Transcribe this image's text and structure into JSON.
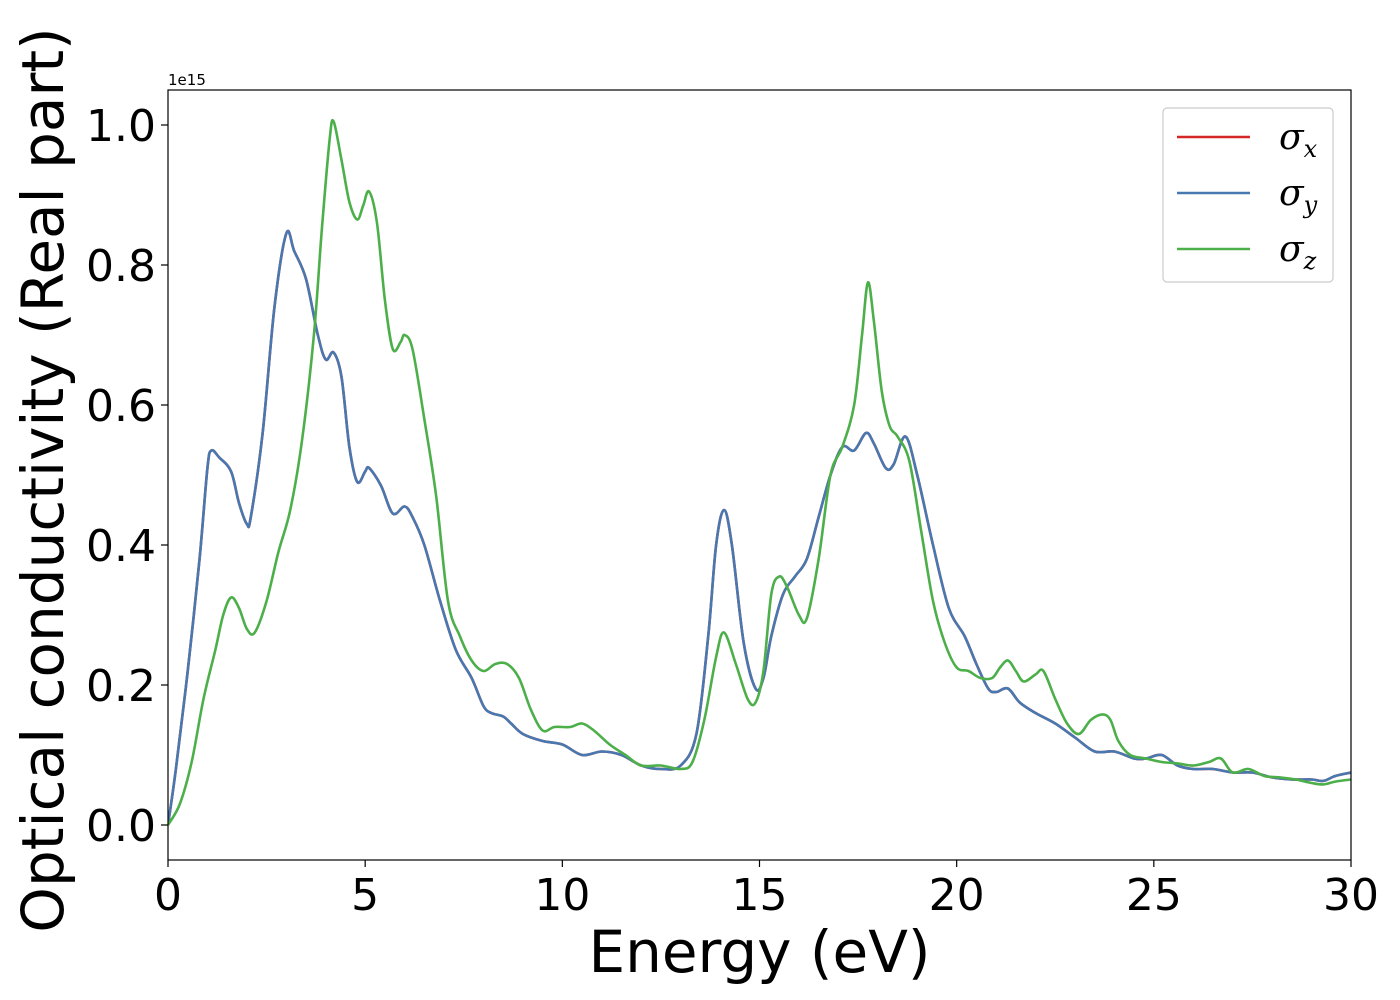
{
  "chart_data": {
    "type": "line",
    "xlabel": "Energy (eV)",
    "ylabel": "Optical conductivity (Real part)",
    "y_offset_label": "1e15",
    "xlim": [
      0,
      30
    ],
    "ylim": [
      -0.05,
      1.05
    ],
    "xticks": [
      0,
      5,
      10,
      15,
      20,
      25,
      30
    ],
    "xtick_labels": [
      "0",
      "5",
      "10",
      "15",
      "20",
      "25",
      "30"
    ],
    "yticks": [
      0.0,
      0.2,
      0.4,
      0.6,
      0.8,
      1.0
    ],
    "ytick_labels": [
      "0.0",
      "0.2",
      "0.4",
      "0.6",
      "0.8",
      "1.0"
    ],
    "grid": false,
    "legend_position": "top-right",
    "series": [
      {
        "name": "σx",
        "legend_base": "σ",
        "legend_sub": "x",
        "color": "#d62728",
        "x": [
          0,
          0.2,
          0.5,
          0.8,
          1.0,
          1.1,
          1.3,
          1.6,
          1.8,
          2.0,
          2.1,
          2.4,
          2.7,
          3.0,
          3.2,
          3.5,
          3.8,
          4.0,
          4.2,
          4.4,
          4.6,
          4.8,
          5.0,
          5.1,
          5.4,
          5.7,
          6.0,
          6.2,
          6.5,
          6.9,
          7.3,
          7.7,
          8.0,
          8.2,
          8.5,
          8.7,
          9.0,
          9.5,
          10.0,
          10.5,
          11.0,
          11.5,
          12.0,
          12.5,
          13.0,
          13.4,
          13.7,
          13.9,
          14.1,
          14.3,
          14.6,
          14.9,
          15.1,
          15.3,
          15.6,
          15.9,
          16.2,
          16.5,
          16.8,
          17.1,
          17.4,
          17.7,
          17.9,
          18.2,
          18.4,
          18.7,
          19.0,
          19.4,
          19.8,
          20.2,
          20.5,
          20.8,
          21.0,
          21.3,
          21.6,
          22.0,
          22.5,
          23.0,
          23.5,
          24.0,
          24.5,
          24.8,
          25.2,
          25.6,
          26.0,
          26.5,
          27.0,
          27.5,
          28.0,
          28.5,
          29.0,
          29.3,
          29.6,
          30.0
        ],
        "y": [
          0.0,
          0.08,
          0.22,
          0.38,
          0.51,
          0.535,
          0.525,
          0.505,
          0.46,
          0.43,
          0.44,
          0.56,
          0.74,
          0.845,
          0.82,
          0.78,
          0.7,
          0.665,
          0.675,
          0.64,
          0.54,
          0.49,
          0.505,
          0.51,
          0.485,
          0.445,
          0.455,
          0.44,
          0.4,
          0.32,
          0.25,
          0.21,
          0.17,
          0.16,
          0.155,
          0.145,
          0.13,
          0.12,
          0.115,
          0.1,
          0.105,
          0.1,
          0.085,
          0.08,
          0.085,
          0.13,
          0.27,
          0.4,
          0.45,
          0.4,
          0.26,
          0.195,
          0.21,
          0.27,
          0.33,
          0.355,
          0.38,
          0.44,
          0.5,
          0.54,
          0.535,
          0.56,
          0.545,
          0.51,
          0.515,
          0.555,
          0.5,
          0.4,
          0.31,
          0.27,
          0.23,
          0.195,
          0.19,
          0.195,
          0.175,
          0.16,
          0.145,
          0.125,
          0.105,
          0.105,
          0.095,
          0.095,
          0.1,
          0.085,
          0.08,
          0.08,
          0.075,
          0.075,
          0.068,
          0.065,
          0.065,
          0.063,
          0.07,
          0.075
        ]
      },
      {
        "name": "σy",
        "legend_base": "σ",
        "legend_sub": "y",
        "color": "#4878b0",
        "x": [
          0,
          0.2,
          0.5,
          0.8,
          1.0,
          1.1,
          1.3,
          1.6,
          1.8,
          2.0,
          2.1,
          2.4,
          2.7,
          3.0,
          3.2,
          3.5,
          3.8,
          4.0,
          4.2,
          4.4,
          4.6,
          4.8,
          5.0,
          5.1,
          5.4,
          5.7,
          6.0,
          6.2,
          6.5,
          6.9,
          7.3,
          7.7,
          8.0,
          8.2,
          8.5,
          8.7,
          9.0,
          9.5,
          10.0,
          10.5,
          11.0,
          11.5,
          12.0,
          12.5,
          13.0,
          13.4,
          13.7,
          13.9,
          14.1,
          14.3,
          14.6,
          14.9,
          15.1,
          15.3,
          15.6,
          15.9,
          16.2,
          16.5,
          16.8,
          17.1,
          17.4,
          17.7,
          17.9,
          18.2,
          18.4,
          18.7,
          19.0,
          19.4,
          19.8,
          20.2,
          20.5,
          20.8,
          21.0,
          21.3,
          21.6,
          22.0,
          22.5,
          23.0,
          23.5,
          24.0,
          24.5,
          24.8,
          25.2,
          25.6,
          26.0,
          26.5,
          27.0,
          27.5,
          28.0,
          28.5,
          29.0,
          29.3,
          29.6,
          30.0
        ],
        "y": [
          0.0,
          0.08,
          0.22,
          0.38,
          0.51,
          0.535,
          0.525,
          0.505,
          0.46,
          0.43,
          0.44,
          0.56,
          0.74,
          0.845,
          0.82,
          0.78,
          0.7,
          0.665,
          0.675,
          0.64,
          0.54,
          0.49,
          0.505,
          0.51,
          0.485,
          0.445,
          0.455,
          0.44,
          0.4,
          0.32,
          0.25,
          0.21,
          0.17,
          0.16,
          0.155,
          0.145,
          0.13,
          0.12,
          0.115,
          0.1,
          0.105,
          0.1,
          0.085,
          0.08,
          0.085,
          0.13,
          0.27,
          0.4,
          0.45,
          0.4,
          0.26,
          0.195,
          0.21,
          0.27,
          0.33,
          0.355,
          0.38,
          0.44,
          0.5,
          0.54,
          0.535,
          0.56,
          0.545,
          0.51,
          0.515,
          0.555,
          0.5,
          0.4,
          0.31,
          0.27,
          0.23,
          0.195,
          0.19,
          0.195,
          0.175,
          0.16,
          0.145,
          0.125,
          0.105,
          0.105,
          0.095,
          0.095,
          0.1,
          0.085,
          0.08,
          0.08,
          0.075,
          0.075,
          0.068,
          0.065,
          0.065,
          0.063,
          0.07,
          0.075
        ]
      },
      {
        "name": "σz",
        "legend_base": "σ",
        "legend_sub": "z",
        "color": "#4daf4a",
        "x": [
          0,
          0.3,
          0.6,
          0.9,
          1.2,
          1.4,
          1.6,
          1.8,
          2.0,
          2.2,
          2.5,
          2.8,
          3.1,
          3.4,
          3.7,
          3.9,
          4.1,
          4.2,
          4.4,
          4.6,
          4.8,
          4.95,
          5.1,
          5.3,
          5.5,
          5.7,
          5.9,
          6.0,
          6.2,
          6.5,
          6.8,
          7.1,
          7.4,
          7.7,
          8.0,
          8.3,
          8.6,
          8.9,
          9.2,
          9.5,
          9.8,
          10.2,
          10.5,
          10.8,
          11.2,
          11.6,
          12.0,
          12.5,
          13.0,
          13.3,
          13.6,
          13.9,
          14.1,
          14.4,
          14.7,
          14.9,
          15.1,
          15.3,
          15.5,
          15.7,
          16.0,
          16.2,
          16.5,
          16.8,
          17.1,
          17.4,
          17.6,
          17.75,
          17.9,
          18.1,
          18.3,
          18.5,
          18.8,
          19.1,
          19.4,
          19.7,
          20.0,
          20.3,
          20.6,
          20.9,
          21.1,
          21.3,
          21.5,
          21.7,
          22.0,
          22.2,
          22.5,
          22.8,
          23.1,
          23.4,
          23.7,
          23.9,
          24.1,
          24.4,
          24.8,
          25.2,
          25.6,
          26.0,
          26.4,
          26.7,
          27.0,
          27.4,
          27.8,
          28.2,
          28.6,
          29.0,
          29.3,
          29.6,
          30.0
        ],
        "y": [
          0.0,
          0.03,
          0.09,
          0.18,
          0.25,
          0.3,
          0.325,
          0.31,
          0.28,
          0.275,
          0.32,
          0.39,
          0.45,
          0.55,
          0.7,
          0.85,
          0.98,
          1.005,
          0.95,
          0.89,
          0.865,
          0.885,
          0.905,
          0.86,
          0.75,
          0.68,
          0.69,
          0.7,
          0.68,
          0.58,
          0.47,
          0.32,
          0.27,
          0.235,
          0.22,
          0.23,
          0.23,
          0.21,
          0.165,
          0.135,
          0.14,
          0.14,
          0.145,
          0.135,
          0.115,
          0.1,
          0.085,
          0.085,
          0.08,
          0.09,
          0.15,
          0.24,
          0.275,
          0.23,
          0.18,
          0.175,
          0.22,
          0.33,
          0.355,
          0.34,
          0.3,
          0.295,
          0.38,
          0.5,
          0.54,
          0.6,
          0.7,
          0.775,
          0.72,
          0.62,
          0.57,
          0.555,
          0.52,
          0.42,
          0.32,
          0.26,
          0.225,
          0.22,
          0.21,
          0.21,
          0.225,
          0.235,
          0.22,
          0.205,
          0.215,
          0.22,
          0.18,
          0.145,
          0.13,
          0.15,
          0.158,
          0.15,
          0.12,
          0.1,
          0.095,
          0.09,
          0.088,
          0.085,
          0.09,
          0.095,
          0.075,
          0.08,
          0.07,
          0.068,
          0.065,
          0.06,
          0.058,
          0.062,
          0.065
        ]
      }
    ]
  }
}
